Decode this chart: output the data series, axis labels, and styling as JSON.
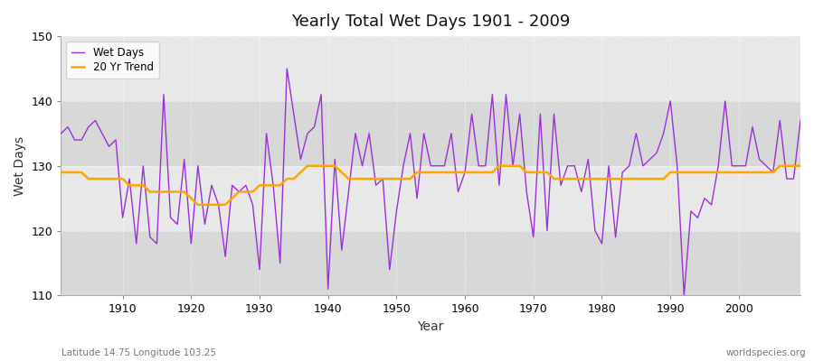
{
  "title": "Yearly Total Wet Days 1901 - 2009",
  "xlabel": "Year",
  "ylabel": "Wet Days",
  "lat_lon_label": "Latitude 14.75 Longitude 103.25",
  "watermark": "worldspecies.org",
  "legend_wet_days": "Wet Days",
  "legend_trend": "20 Yr Trend",
  "wet_days_color": "#9b30d9",
  "trend_color": "#ffa500",
  "bg_color": "#ffffff",
  "plot_bg_color": "#e0e0e0",
  "ylim": [
    110,
    150
  ],
  "xlim": [
    1901,
    2009
  ],
  "xticks": [
    1910,
    1920,
    1930,
    1940,
    1950,
    1960,
    1970,
    1980,
    1990,
    2000
  ],
  "yticks": [
    110,
    120,
    130,
    140,
    150
  ],
  "years": [
    1901,
    1902,
    1903,
    1904,
    1905,
    1906,
    1907,
    1908,
    1909,
    1910,
    1911,
    1912,
    1913,
    1914,
    1915,
    1916,
    1917,
    1918,
    1919,
    1920,
    1921,
    1922,
    1923,
    1924,
    1925,
    1926,
    1927,
    1928,
    1929,
    1930,
    1931,
    1932,
    1933,
    1934,
    1935,
    1936,
    1937,
    1938,
    1939,
    1940,
    1941,
    1942,
    1943,
    1944,
    1945,
    1946,
    1947,
    1948,
    1949,
    1950,
    1951,
    1952,
    1953,
    1954,
    1955,
    1956,
    1957,
    1958,
    1959,
    1960,
    1961,
    1962,
    1963,
    1964,
    1965,
    1966,
    1967,
    1968,
    1969,
    1970,
    1971,
    1972,
    1973,
    1974,
    1975,
    1976,
    1977,
    1978,
    1979,
    1980,
    1981,
    1982,
    1983,
    1984,
    1985,
    1986,
    1987,
    1988,
    1989,
    1990,
    1991,
    1992,
    1993,
    1994,
    1995,
    1996,
    1997,
    1998,
    1999,
    2000,
    2001,
    2002,
    2003,
    2004,
    2005,
    2006,
    2007,
    2008,
    2009
  ],
  "wet_days": [
    135,
    136,
    134,
    134,
    136,
    137,
    135,
    133,
    134,
    122,
    128,
    118,
    130,
    119,
    118,
    141,
    122,
    121,
    131,
    118,
    130,
    121,
    127,
    124,
    116,
    127,
    126,
    127,
    124,
    114,
    135,
    127,
    115,
    145,
    138,
    131,
    135,
    136,
    141,
    111,
    131,
    117,
    126,
    135,
    130,
    135,
    127,
    128,
    114,
    123,
    130,
    135,
    125,
    135,
    130,
    130,
    130,
    135,
    126,
    129,
    138,
    130,
    130,
    141,
    127,
    141,
    130,
    138,
    126,
    119,
    138,
    120,
    138,
    127,
    130,
    130,
    126,
    131,
    120,
    118,
    130,
    119,
    129,
    130,
    135,
    130,
    131,
    132,
    135,
    140,
    130,
    110,
    123,
    122,
    125,
    124,
    130,
    140,
    130,
    130,
    130,
    136,
    131,
    130,
    129,
    137,
    128,
    128,
    137
  ],
  "trend": [
    129,
    129,
    129,
    129,
    128,
    128,
    128,
    128,
    128,
    128,
    127,
    127,
    127,
    126,
    126,
    126,
    126,
    126,
    126,
    125,
    124,
    124,
    124,
    124,
    124,
    125,
    126,
    126,
    126,
    127,
    127,
    127,
    127,
    128,
    128,
    129,
    130,
    130,
    130,
    130,
    130,
    129,
    128,
    128,
    128,
    128,
    128,
    128,
    128,
    128,
    128,
    128,
    129,
    129,
    129,
    129,
    129,
    129,
    129,
    129,
    129,
    129,
    129,
    129,
    130,
    130,
    130,
    130,
    129,
    129,
    129,
    129,
    128,
    128,
    128,
    128,
    128,
    128,
    128,
    128,
    128,
    128,
    128,
    128,
    128,
    128,
    128,
    128,
    128,
    129,
    129,
    129,
    129,
    129,
    129,
    129,
    129,
    129,
    129,
    129,
    129,
    129,
    129,
    129,
    129,
    130,
    130,
    130,
    130
  ]
}
